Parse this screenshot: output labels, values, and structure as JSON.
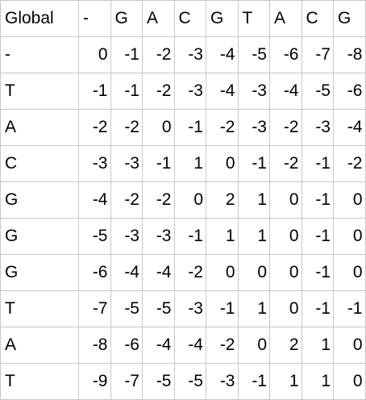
{
  "header": [
    "Global",
    "-",
    "G",
    "A",
    "C",
    "G",
    "T",
    "A",
    "C",
    "G"
  ],
  "rows": [
    [
      "-",
      "0",
      "-1",
      "-2",
      "-3",
      "-4",
      "-5",
      "-6",
      "-7",
      "-8"
    ],
    [
      "T",
      "-1",
      "-1",
      "-2",
      "-3",
      "-4",
      "-3",
      "-4",
      "-5",
      "-6"
    ],
    [
      "A",
      "-2",
      "-2",
      "0",
      "-1",
      "-2",
      "-3",
      "-2",
      "-3",
      "-4"
    ],
    [
      "C",
      "-3",
      "-3",
      "-1",
      "1",
      "0",
      "-1",
      "-2",
      "-1",
      "-2"
    ],
    [
      "G",
      "-4",
      "-2",
      "-2",
      "0",
      "2",
      "1",
      "0",
      "-1",
      "0"
    ],
    [
      "G",
      "-5",
      "-3",
      "-3",
      "-1",
      "1",
      "1",
      "0",
      "-1",
      "0"
    ],
    [
      "G",
      "-6",
      "-4",
      "-4",
      "-2",
      "0",
      "0",
      "0",
      "-1",
      "0"
    ],
    [
      "T",
      "-7",
      "-5",
      "-5",
      "-3",
      "-1",
      "1",
      "0",
      "-1",
      "-1"
    ],
    [
      "A",
      "-8",
      "-6",
      "-4",
      "-4",
      "-2",
      "0",
      "2",
      "1",
      "0"
    ],
    [
      "T",
      "-9",
      "-7",
      "-5",
      "-5",
      "-3",
      "-1",
      "1",
      "1",
      "0"
    ]
  ]
}
